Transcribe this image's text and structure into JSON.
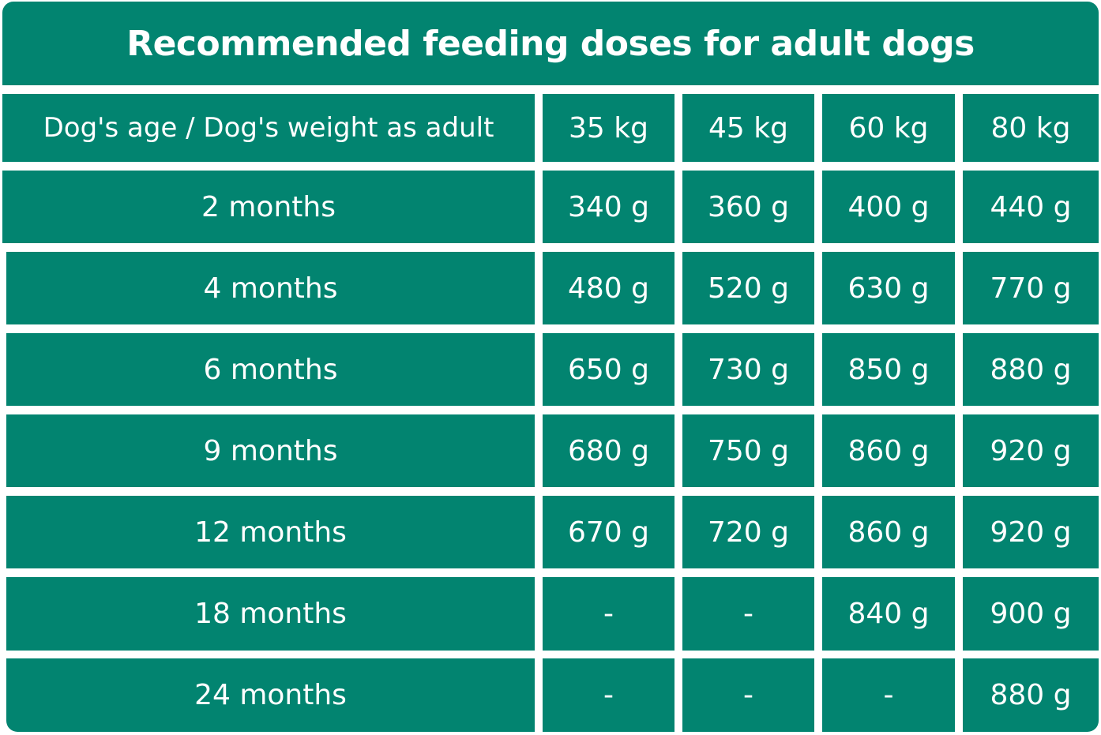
{
  "table": {
    "title": "Recommended feeding doses for adult dogs",
    "header_label": "Dog's age / Dog's weight as adult",
    "weights": [
      "35 kg",
      "45 kg",
      "60 kg",
      "80 kg"
    ],
    "rows": [
      {
        "age": "2 months",
        "doses": [
          "340 g",
          "360 g",
          "400 g",
          "440 g"
        ]
      },
      {
        "age": "4 months",
        "doses": [
          "480 g",
          "520 g",
          "630 g",
          "770 g"
        ]
      },
      {
        "age": "6 months",
        "doses": [
          "650 g",
          "730 g",
          "850 g",
          "880 g"
        ]
      },
      {
        "age": "9 months",
        "doses": [
          "680 g",
          "750 g",
          "860 g",
          "920 g"
        ]
      },
      {
        "age": "12 months",
        "doses": [
          "670 g",
          "720 g",
          "860 g",
          "920 g"
        ]
      },
      {
        "age": "18 months",
        "doses": [
          "-",
          "-",
          "840 g",
          "900 g"
        ]
      },
      {
        "age": "24 months",
        "doses": [
          "-",
          "-",
          "-",
          "880 g"
        ]
      }
    ]
  },
  "colors": {
    "cell_background": "#028470",
    "text": "#ffffff",
    "gap": "#ffffff"
  }
}
